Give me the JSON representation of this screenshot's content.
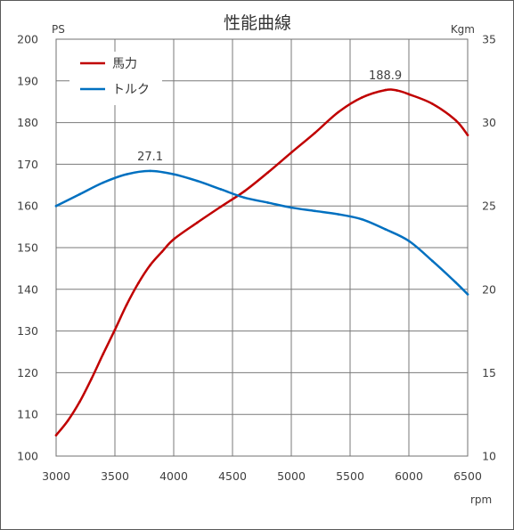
{
  "chart_data": {
    "type": "line",
    "title": "性能曲線",
    "x_unit": "rpm",
    "y_left_unit": "PS",
    "y_right_unit": "Kgm",
    "x_range": [
      3000,
      6500
    ],
    "x_ticks": [
      3000,
      3500,
      4000,
      4500,
      5000,
      5500,
      6000,
      6500
    ],
    "y_left_range": [
      100,
      200
    ],
    "y_left_ticks": [
      100,
      110,
      120,
      130,
      140,
      150,
      160,
      170,
      180,
      190,
      200
    ],
    "y_right_range": [
      10,
      35
    ],
    "y_right_ticks": [
      10,
      15,
      20,
      25,
      30,
      35
    ],
    "grid": true,
    "legend_position": "top-left",
    "series": [
      {
        "name": "馬力",
        "axis": "left",
        "color": "#c00000",
        "x": [
          3000,
          3100,
          3200,
          3300,
          3400,
          3500,
          3600,
          3700,
          3800,
          3900,
          4000,
          4200,
          4400,
          4600,
          4800,
          5000,
          5200,
          5400,
          5600,
          5800,
          5900,
          6000,
          6200,
          6400,
          6500
        ],
        "y": [
          105.0,
          108.5,
          113.0,
          118.5,
          124.5,
          130.3,
          136.3,
          141.5,
          145.8,
          149.0,
          152.0,
          156.0,
          159.8,
          163.5,
          168.0,
          172.8,
          177.5,
          182.5,
          186.0,
          187.8,
          187.7,
          186.8,
          184.5,
          180.5,
          177.0
        ],
        "peak_label": "188.9"
      },
      {
        "name": "トルク",
        "axis": "right",
        "color": "#0070c0",
        "x": [
          3000,
          3200,
          3400,
          3600,
          3800,
          4000,
          4200,
          4400,
          4600,
          4800,
          5000,
          5200,
          5400,
          5600,
          5800,
          6000,
          6200,
          6400,
          6500
        ],
        "y": [
          25.0,
          25.7,
          26.4,
          26.9,
          27.1,
          26.9,
          26.5,
          26.0,
          25.5,
          25.2,
          24.9,
          24.7,
          24.5,
          24.2,
          23.6,
          22.9,
          21.7,
          20.4,
          19.7
        ],
        "peak_label": "27.1"
      }
    ]
  }
}
